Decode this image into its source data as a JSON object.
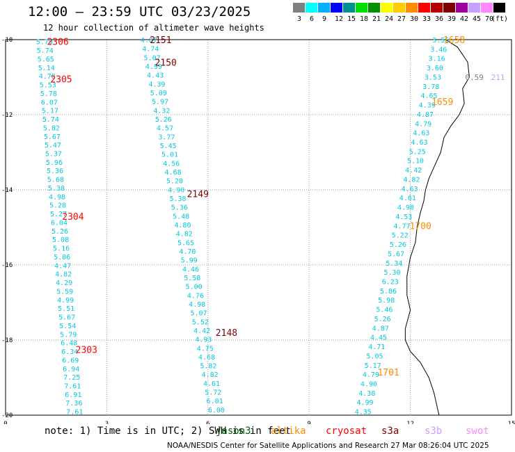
{
  "header": {
    "title": "12:00 — 23:59 UTC 03/23/2025",
    "subtitle": "12 hour collection of altimeter wave heights"
  },
  "color_scale": {
    "colors": [
      "#7f7f7f",
      "#00ffff",
      "#00b0ff",
      "#0000ff",
      "#009090",
      "#00e000",
      "#009000",
      "#ffff00",
      "#ffcc00",
      "#ff8c00",
      "#ff0000",
      "#b40000",
      "#800000",
      "#a000a0",
      "#c8a0ff",
      "#ff88ff",
      "#000000"
    ],
    "labels": [
      "3",
      "6",
      "9",
      "12",
      "15",
      "18",
      "21",
      "24",
      "27",
      "30",
      "33",
      "36",
      "39",
      "42",
      "45",
      "70",
      "(ft)"
    ]
  },
  "axes": {
    "x_ticks": [
      "0",
      "3",
      "6",
      "9",
      "12",
      "15"
    ],
    "y_ticks": [
      "-10",
      "-12",
      "-14",
      "-16",
      "-18",
      "-20"
    ]
  },
  "tracks": [
    {
      "x0": 1.15,
      "x1": 2.05,
      "y0": -10.05,
      "y1": -19.9,
      "color": "#00c8e0",
      "values": [
        "5.79",
        "5.74",
        "5.65",
        "5.14",
        "4.78",
        "5.53",
        "5.78",
        "6.07",
        "5.17",
        "5.74",
        "5.82",
        "5.67",
        "5.47",
        "5.37",
        "5.96",
        "5.36",
        "5.68",
        "5.38",
        "4.98",
        "5.28",
        "5.27",
        "6.04",
        "5.26",
        "5.08",
        "5.16",
        "5.06",
        "4.47",
        "4.82",
        "4.29",
        "5.59",
        "4.99",
        "5.51",
        "5.67",
        "5.54",
        "5.79",
        "6.48",
        "6.34",
        "6.69",
        "6.94",
        "7.25",
        "7.61",
        "6.91",
        "7.36",
        "7.61"
      ]
    },
    {
      "x0": 4.25,
      "x1": 6.25,
      "y0": -10.0,
      "y1": -19.85,
      "color": "#00c8e0",
      "values": [
        "4.87",
        "4.74",
        "5.07",
        "4.99",
        "4.43",
        "4.39",
        "5.09",
        "5.97",
        "4.32",
        "5.26",
        "4.57",
        "3.77",
        "5.45",
        "5.01",
        "4.56",
        "4.68",
        "5.20",
        "4.90",
        "5.38",
        "5.36",
        "5.48",
        "4.80",
        "4.82",
        "5.65",
        "4.70",
        "5.99",
        "4.46",
        "5.58",
        "5.00",
        "4.76",
        "4.98",
        "5.07",
        "5.52",
        "4.42",
        "4.93",
        "4.75",
        "4.68",
        "5.82",
        "4.82",
        "4.61",
        "5.72",
        "6.01",
        "6.00"
      ]
    },
    {
      "x0": 12.9,
      "x1": 10.6,
      "y0": -10.0,
      "y1": -19.9,
      "color": "#00c8e0",
      "values": [
        "3.56",
        "3.46",
        "3.16",
        "3.60",
        "3.53",
        "3.78",
        "4.65",
        "4.39",
        "4.87",
        "4.79",
        "4.63",
        "4.63",
        "5.25",
        "5.10",
        "4.42",
        "4.82",
        "4.63",
        "4.61",
        "4.98",
        "4.53",
        "4.77",
        "5.22",
        "5.26",
        "5.67",
        "5.34",
        "5.30",
        "6.23",
        "5.86",
        "5.98",
        "5.46",
        "5.26",
        "4.87",
        "4.45",
        "4.71",
        "5.05",
        "5.17",
        "4.79",
        "4.90",
        "4.38",
        "4.99",
        "4.35"
      ]
    }
  ],
  "passes": [
    {
      "label": "2306",
      "x": 1.55,
      "y": -10.05,
      "color": "#ff0000"
    },
    {
      "label": "2305",
      "x": 1.65,
      "y": -11.05,
      "color": "#ff0000"
    },
    {
      "label": "2304",
      "x": 2.0,
      "y": -14.7,
      "color": "#ff0000"
    },
    {
      "label": "2303",
      "x": 2.4,
      "y": -18.25,
      "color": "#ff0000"
    },
    {
      "label": "2151",
      "x": 4.6,
      "y": -10.0,
      "color": "#800000"
    },
    {
      "label": "2150",
      "x": 4.75,
      "y": -10.6,
      "color": "#800000"
    },
    {
      "label": "2149",
      "x": 5.7,
      "y": -14.1,
      "color": "#800000"
    },
    {
      "label": "2148",
      "x": 6.55,
      "y": -17.8,
      "color": "#800000"
    },
    {
      "label": "1658",
      "x": 13.3,
      "y": -10.0,
      "color": "#ff8c00"
    },
    {
      "label": "1659",
      "x": 12.95,
      "y": -11.65,
      "color": "#ff8c00"
    },
    {
      "label": "1700",
      "x": 12.3,
      "y": -14.95,
      "color": "#ff8c00"
    },
    {
      "label": "1701",
      "x": 11.35,
      "y": -18.85,
      "color": "#ff8c00"
    }
  ],
  "extra_points": [
    {
      "label": "0.59",
      "x": 13.9,
      "y": -11.0,
      "color": "#808080"
    },
    {
      "label": "211",
      "x": 14.6,
      "y": -11.0,
      "color": "#c8a0ff"
    }
  ],
  "coastline": [
    [
      13.05,
      -10.0
    ],
    [
      13.4,
      -10.2
    ],
    [
      13.7,
      -10.6
    ],
    [
      13.75,
      -11.0
    ],
    [
      13.55,
      -11.3
    ],
    [
      13.6,
      -11.7
    ],
    [
      13.45,
      -12.0
    ],
    [
      13.2,
      -12.3
    ],
    [
      13.0,
      -12.6
    ],
    [
      12.9,
      -13.0
    ],
    [
      12.75,
      -13.3
    ],
    [
      12.55,
      -13.7
    ],
    [
      12.45,
      -14.0
    ],
    [
      12.4,
      -14.3
    ],
    [
      12.3,
      -14.6
    ],
    [
      12.2,
      -15.0
    ],
    [
      12.15,
      -15.4
    ],
    [
      12.0,
      -15.8
    ],
    [
      11.9,
      -16.3
    ],
    [
      11.9,
      -16.8
    ],
    [
      12.0,
      -17.2
    ],
    [
      11.85,
      -17.7
    ],
    [
      11.85,
      -18.0
    ],
    [
      12.0,
      -18.3
    ],
    [
      12.3,
      -18.6
    ],
    [
      12.55,
      -19.0
    ],
    [
      12.7,
      -19.4
    ],
    [
      12.8,
      -19.8
    ],
    [
      12.85,
      -20.0
    ]
  ],
  "footnote": "note: 1) Time is in UTC; 2) SWH is in feet",
  "satellites": [
    {
      "name": "jason3",
      "color": "#006400"
    },
    {
      "name": "altika",
      "color": "#ff8c00"
    },
    {
      "name": "cryosat",
      "color": "#ff0000"
    },
    {
      "name": "s3a",
      "color": "#800000"
    },
    {
      "name": "s3b",
      "color": "#c8a0ff"
    },
    {
      "name": "swot",
      "color": "#ff88ff"
    }
  ],
  "credit": "NOAA/NESDIS Center for Satellite Applications and Research   27 Mar 08:26:04 UTC 2025"
}
